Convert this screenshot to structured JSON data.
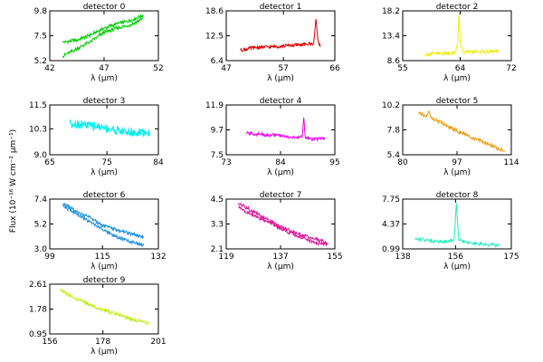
{
  "figure": {
    "ylabel": "Flux (10⁻¹⁶ W cm⁻² μm⁻¹)",
    "xlabel": "λ (μm)"
  },
  "chart_data": [
    {
      "type": "line",
      "title": "detector 0",
      "color": "#00cc00",
      "xlim": [
        42,
        52
      ],
      "ylim": [
        5.2,
        9.8
      ],
      "xticks": [
        "42",
        "47",
        "52"
      ],
      "yticks": [
        "5.2",
        "7.5",
        "9.8"
      ],
      "xlabel": "λ (μm)",
      "series": [
        {
          "x": [
            43.2,
            44.5,
            45.8,
            47.0,
            48.2,
            49.4,
            50.6
          ],
          "y": [
            6.9,
            7.1,
            7.6,
            8.2,
            8.6,
            8.9,
            9.4
          ]
        },
        {
          "x": [
            43.2,
            44.5,
            45.8,
            47.0,
            48.2,
            49.4,
            50.6
          ],
          "y": [
            5.6,
            6.3,
            7.0,
            7.8,
            8.2,
            8.5,
            9.1
          ]
        }
      ]
    },
    {
      "type": "line",
      "title": "detector 1",
      "color": "#dd0000",
      "xlim": [
        47,
        66
      ],
      "ylim": [
        6.4,
        18.6
      ],
      "xticks": [
        "47",
        "57",
        "66"
      ],
      "yticks": [
        "6.4",
        "12.5",
        "18.6"
      ],
      "xlabel": "λ (μm)",
      "series": [
        {
          "x": [
            49.5,
            52,
            55,
            58,
            61,
            62.3,
            62.7,
            63.1,
            63.5
          ],
          "y": [
            9.0,
            9.6,
            9.8,
            10.1,
            10.4,
            10.6,
            16.6,
            10.9,
            9.8
          ]
        }
      ]
    },
    {
      "type": "line",
      "title": "detector 2",
      "color": "#eeee00",
      "xlim": [
        55,
        72
      ],
      "ylim": [
        8.6,
        18.2
      ],
      "xticks": [
        "55",
        "64",
        "72"
      ],
      "yticks": [
        "8.6",
        "13.4",
        "18.2"
      ],
      "xlabel": "λ (μm)",
      "series": [
        {
          "x": [
            58.5,
            61,
            63.2,
            63.6,
            63.8,
            64.0,
            64.5,
            67,
            70
          ],
          "y": [
            9.8,
            10.0,
            10.1,
            12.0,
            17.6,
            12.0,
            10.2,
            10.3,
            10.4
          ]
        }
      ]
    },
    {
      "type": "line",
      "title": "detector 3",
      "color": "#00eeee",
      "xlim": [
        65,
        84
      ],
      "ylim": [
        9.0,
        11.5
      ],
      "xticks": [
        "65",
        "75",
        "84"
      ],
      "yticks": [
        "9.0",
        "10.3",
        "11.5"
      ],
      "xlabel": "λ (μm)",
      "series": [
        {
          "x": [
            68.5,
            71,
            74,
            77,
            80,
            82.5
          ],
          "y": [
            10.6,
            10.5,
            10.4,
            10.2,
            10.1,
            10.1
          ]
        }
      ]
    },
    {
      "type": "line",
      "title": "detector 4",
      "color": "#ee00ee",
      "xlim": [
        73,
        95
      ],
      "ylim": [
        7.5,
        11.9
      ],
      "xticks": [
        "73",
        "84",
        "95"
      ],
      "yticks": [
        "7.5",
        "9.7",
        "11.9"
      ],
      "xlabel": "λ (μm)",
      "series": [
        {
          "x": [
            77,
            80,
            84,
            87,
            88.4,
            88.7,
            89.0,
            90,
            93
          ],
          "y": [
            9.4,
            9.3,
            9.2,
            9.0,
            9.1,
            10.8,
            9.1,
            8.9,
            8.9
          ]
        }
      ]
    },
    {
      "type": "line",
      "title": "detector 5",
      "color": "#ee9900",
      "xlim": [
        80,
        114
      ],
      "ylim": [
        5.4,
        10.2
      ],
      "xticks": [
        "80",
        "97",
        "114"
      ],
      "yticks": [
        "5.4",
        "7.8",
        "10.2"
      ],
      "xlabel": "λ (μm)",
      "series": [
        {
          "x": [
            85,
            87.5,
            88.2,
            88.8,
            92,
            97,
            102,
            107,
            112
          ],
          "y": [
            9.4,
            9.1,
            9.6,
            9.0,
            8.5,
            7.7,
            7.0,
            6.4,
            5.7
          ]
        }
      ]
    },
    {
      "type": "line",
      "title": "detector 6",
      "color": "#1e90dd",
      "xlim": [
        99,
        132
      ],
      "ylim": [
        3.0,
        7.4
      ],
      "xticks": [
        "99",
        "115",
        "132"
      ],
      "yticks": [
        "3.0",
        "5.2",
        "7.4"
      ],
      "xlabel": "λ (μm)",
      "series": [
        {
          "x": [
            103,
            107,
            111,
            115,
            119,
            123,
            127.5
          ],
          "y": [
            7.0,
            6.3,
            5.8,
            5.1,
            4.7,
            4.4,
            4.0
          ]
        },
        {
          "x": [
            103,
            107,
            111,
            115,
            119,
            123,
            127.5
          ],
          "y": [
            6.8,
            6.1,
            5.4,
            4.7,
            4.1,
            3.7,
            3.3
          ]
        }
      ]
    },
    {
      "type": "line",
      "title": "detector 7",
      "color": "#dd1199",
      "xlim": [
        119,
        155
      ],
      "ylim": [
        2.1,
        4.5
      ],
      "xticks": [
        "119",
        "137",
        "155"
      ],
      "yticks": [
        "2.1",
        "3.3",
        "4.5"
      ],
      "xlabel": "λ (μm)",
      "series": [
        {
          "x": [
            123,
            128,
            133,
            138,
            143,
            148,
            152.5
          ],
          "y": [
            4.3,
            3.9,
            3.5,
            3.1,
            2.8,
            2.6,
            2.4
          ]
        },
        {
          "x": [
            123,
            128,
            133,
            138,
            143,
            148,
            152.5
          ],
          "y": [
            4.1,
            3.7,
            3.4,
            3.0,
            2.7,
            2.4,
            2.3
          ]
        }
      ]
    },
    {
      "type": "line",
      "title": "detector 8",
      "color": "#22eebb",
      "xlim": [
        138,
        175
      ],
      "ylim": [
        0.99,
        7.75
      ],
      "xticks": [
        "138",
        "156",
        "175"
      ],
      "yticks": [
        "0.99",
        "4.37",
        "7.75"
      ],
      "xlabel": "λ (μm)",
      "series": [
        {
          "x": [
            142,
            148,
            153,
            155.5,
            156.3,
            157.1,
            160,
            166,
            171
          ],
          "y": [
            2.4,
            2.1,
            2.0,
            2.2,
            7.2,
            2.2,
            1.8,
            1.6,
            1.5
          ]
        }
      ]
    },
    {
      "type": "line",
      "title": "detector 9",
      "color": "#bbee00",
      "xlim": [
        156,
        201
      ],
      "ylim": [
        0.95,
        2.61
      ],
      "xticks": [
        "156",
        "178",
        "201"
      ],
      "yticks": [
        "0.95",
        "1.78",
        "2.61"
      ],
      "xlabel": "λ (μm)",
      "series": [
        {
          "x": [
            160,
            166,
            172,
            178,
            184,
            190,
            197
          ],
          "y": [
            2.45,
            2.15,
            1.95,
            1.75,
            1.6,
            1.45,
            1.3
          ]
        }
      ]
    }
  ]
}
